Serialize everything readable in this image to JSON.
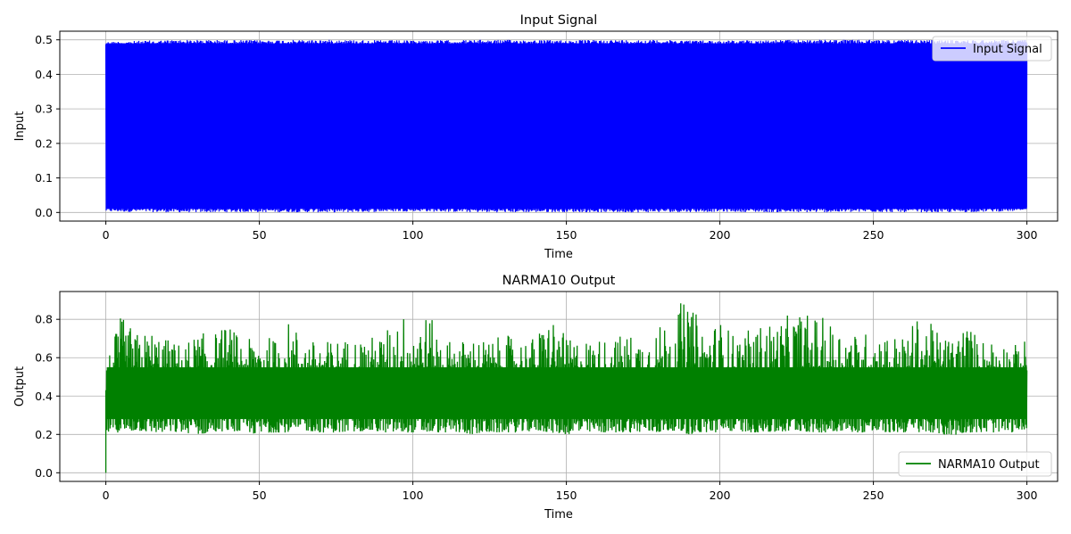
{
  "chart_data": [
    {
      "type": "line",
      "title": "Input Signal",
      "xlabel": "Time",
      "ylabel": "Input",
      "xlim": [
        -15,
        310
      ],
      "ylim": [
        -0.025,
        0.525
      ],
      "xticks": [
        0,
        50,
        100,
        150,
        200,
        250,
        300
      ],
      "xtick_labels": [
        "0",
        "50",
        "100",
        "150",
        "200",
        "250",
        "300"
      ],
      "yticks": [
        0.0,
        0.1,
        0.2,
        0.3,
        0.4,
        0.5
      ],
      "ytick_labels": [
        "0.0",
        "0.1",
        "0.2",
        "0.3",
        "0.4",
        "0.5"
      ],
      "grid": true,
      "legend_position": "top-right",
      "series": [
        {
          "name": "Input Signal",
          "color": "#0000ff",
          "x_range": [
            0,
            300
          ],
          "envelope_min": [
            0.002,
            0.0,
            0.001,
            0.0,
            0.003,
            0.0,
            0.001,
            0.0,
            0.002,
            0.0,
            0.001,
            0.0,
            0.004
          ],
          "envelope_max": [
            0.495,
            0.5,
            0.499,
            0.5,
            0.498,
            0.5,
            0.499,
            0.5,
            0.498,
            0.5,
            0.5,
            0.499,
            0.5
          ]
        }
      ]
    },
    {
      "type": "line",
      "title": "NARMA10 Output",
      "xlabel": "Time",
      "ylabel": "Output",
      "xlim": [
        -15,
        310
      ],
      "ylim": [
        -0.045,
        0.945
      ],
      "xticks": [
        0,
        50,
        100,
        150,
        200,
        250,
        300
      ],
      "xtick_labels": [
        "0",
        "50",
        "100",
        "150",
        "200",
        "250",
        "300"
      ],
      "yticks": [
        0.0,
        0.2,
        0.4,
        0.6,
        0.8
      ],
      "ytick_labels": [
        "0.0",
        "0.2",
        "0.4",
        "0.6",
        "0.8"
      ],
      "grid": true,
      "legend_position": "bottom-right",
      "series": [
        {
          "name": "NARMA10 Output",
          "color": "#008000",
          "start_point": [
            0,
            0.0
          ],
          "x": [
            0,
            5,
            10,
            15,
            20,
            25,
            30,
            35,
            40,
            45,
            50,
            55,
            60,
            65,
            70,
            75,
            80,
            85,
            90,
            95,
            100,
            105,
            110,
            115,
            120,
            125,
            130,
            135,
            140,
            145,
            150,
            155,
            160,
            165,
            170,
            175,
            180,
            185,
            190,
            195,
            200,
            205,
            210,
            215,
            220,
            225,
            230,
            235,
            240,
            245,
            250,
            255,
            260,
            265,
            270,
            275,
            280,
            285,
            290,
            295,
            300
          ],
          "envelope_min": [
            0.2,
            0.2,
            0.21,
            0.2,
            0.2,
            0.2,
            0.19,
            0.2,
            0.21,
            0.2,
            0.19,
            0.2,
            0.2,
            0.21,
            0.2,
            0.2,
            0.2,
            0.21,
            0.2,
            0.2,
            0.2,
            0.2,
            0.2,
            0.2,
            0.19,
            0.2,
            0.2,
            0.2,
            0.21,
            0.2,
            0.19,
            0.2,
            0.2,
            0.2,
            0.2,
            0.2,
            0.2,
            0.21,
            0.19,
            0.2,
            0.2,
            0.21,
            0.2,
            0.2,
            0.2,
            0.21,
            0.2,
            0.2,
            0.21,
            0.2,
            0.2,
            0.2,
            0.2,
            0.2,
            0.2,
            0.18,
            0.2,
            0.2,
            0.2,
            0.2,
            0.22
          ],
          "envelope_max": [
            0.57,
            0.82,
            0.73,
            0.75,
            0.7,
            0.67,
            0.73,
            0.73,
            0.78,
            0.68,
            0.73,
            0.7,
            0.8,
            0.7,
            0.68,
            0.7,
            0.7,
            0.71,
            0.72,
            0.83,
            0.84,
            0.83,
            0.7,
            0.69,
            0.71,
            0.69,
            0.72,
            0.7,
            0.71,
            0.85,
            0.7,
            0.7,
            0.7,
            0.71,
            0.73,
            0.71,
            0.76,
            0.89,
            0.89,
            0.76,
            0.8,
            0.72,
            0.75,
            0.79,
            0.8,
            0.85,
            0.83,
            0.8,
            0.77,
            0.72,
            0.75,
            0.73,
            0.71,
            0.83,
            0.76,
            0.7,
            0.79,
            0.7,
            0.71,
            0.66,
            0.7
          ]
        }
      ]
    }
  ]
}
